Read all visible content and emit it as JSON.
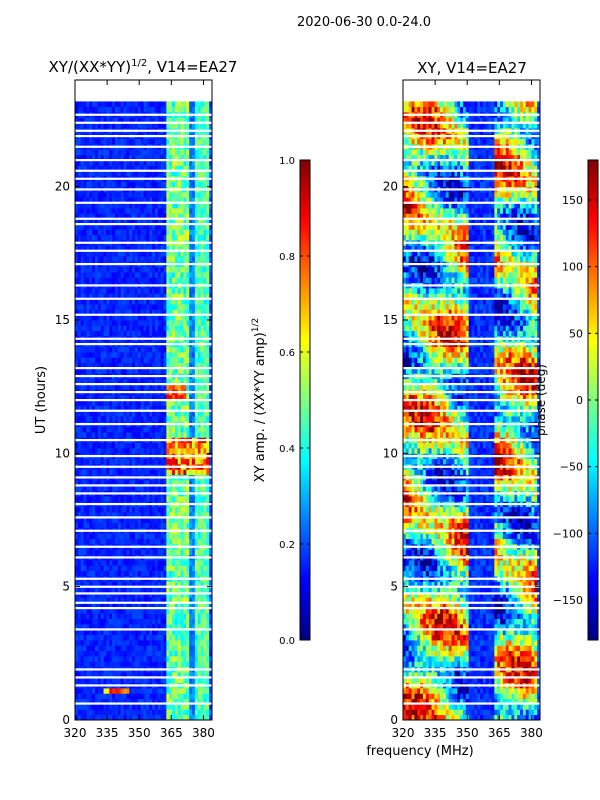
{
  "figure": {
    "suptitle": "2020-06-30 0.0-24.0",
    "xlabel": "frequency (MHz)"
  },
  "chart_data": [
    {
      "type": "heatmap",
      "title_main": "XY/(XX*YY)",
      "title_sup": "1/2",
      "title_tail": ", V14=EA27",
      "ylabel": "UT (hours)",
      "xlim": [
        320,
        384
      ],
      "ylim": [
        0,
        24
      ],
      "xticks": [
        "320",
        "335",
        "350",
        "365",
        "380"
      ],
      "yticks": [
        "0",
        "5",
        "10",
        "15",
        "20"
      ],
      "colorbar": {
        "label_main": "XY amp. / (XX*YY amp)",
        "label_sup": "1/2",
        "range": [
          0.0,
          1.0
        ],
        "ticks": [
          "0.0",
          "0.2",
          "0.4",
          "0.6",
          "0.8",
          "1.0"
        ]
      }
    },
    {
      "type": "heatmap",
      "title": "XY, V14=EA27",
      "ylabel": "",
      "xlim": [
        320,
        384
      ],
      "ylim": [
        0,
        24
      ],
      "xticks": [
        "320",
        "335",
        "350",
        "365",
        "380"
      ],
      "yticks": [
        "0",
        "5",
        "10",
        "15",
        "20"
      ],
      "colorbar": {
        "label": "phase (deg)",
        "range": [
          -180,
          180
        ],
        "ticks": [
          "-150",
          "-100",
          "-50",
          "0",
          "50",
          "100",
          "150"
        ]
      }
    }
  ]
}
